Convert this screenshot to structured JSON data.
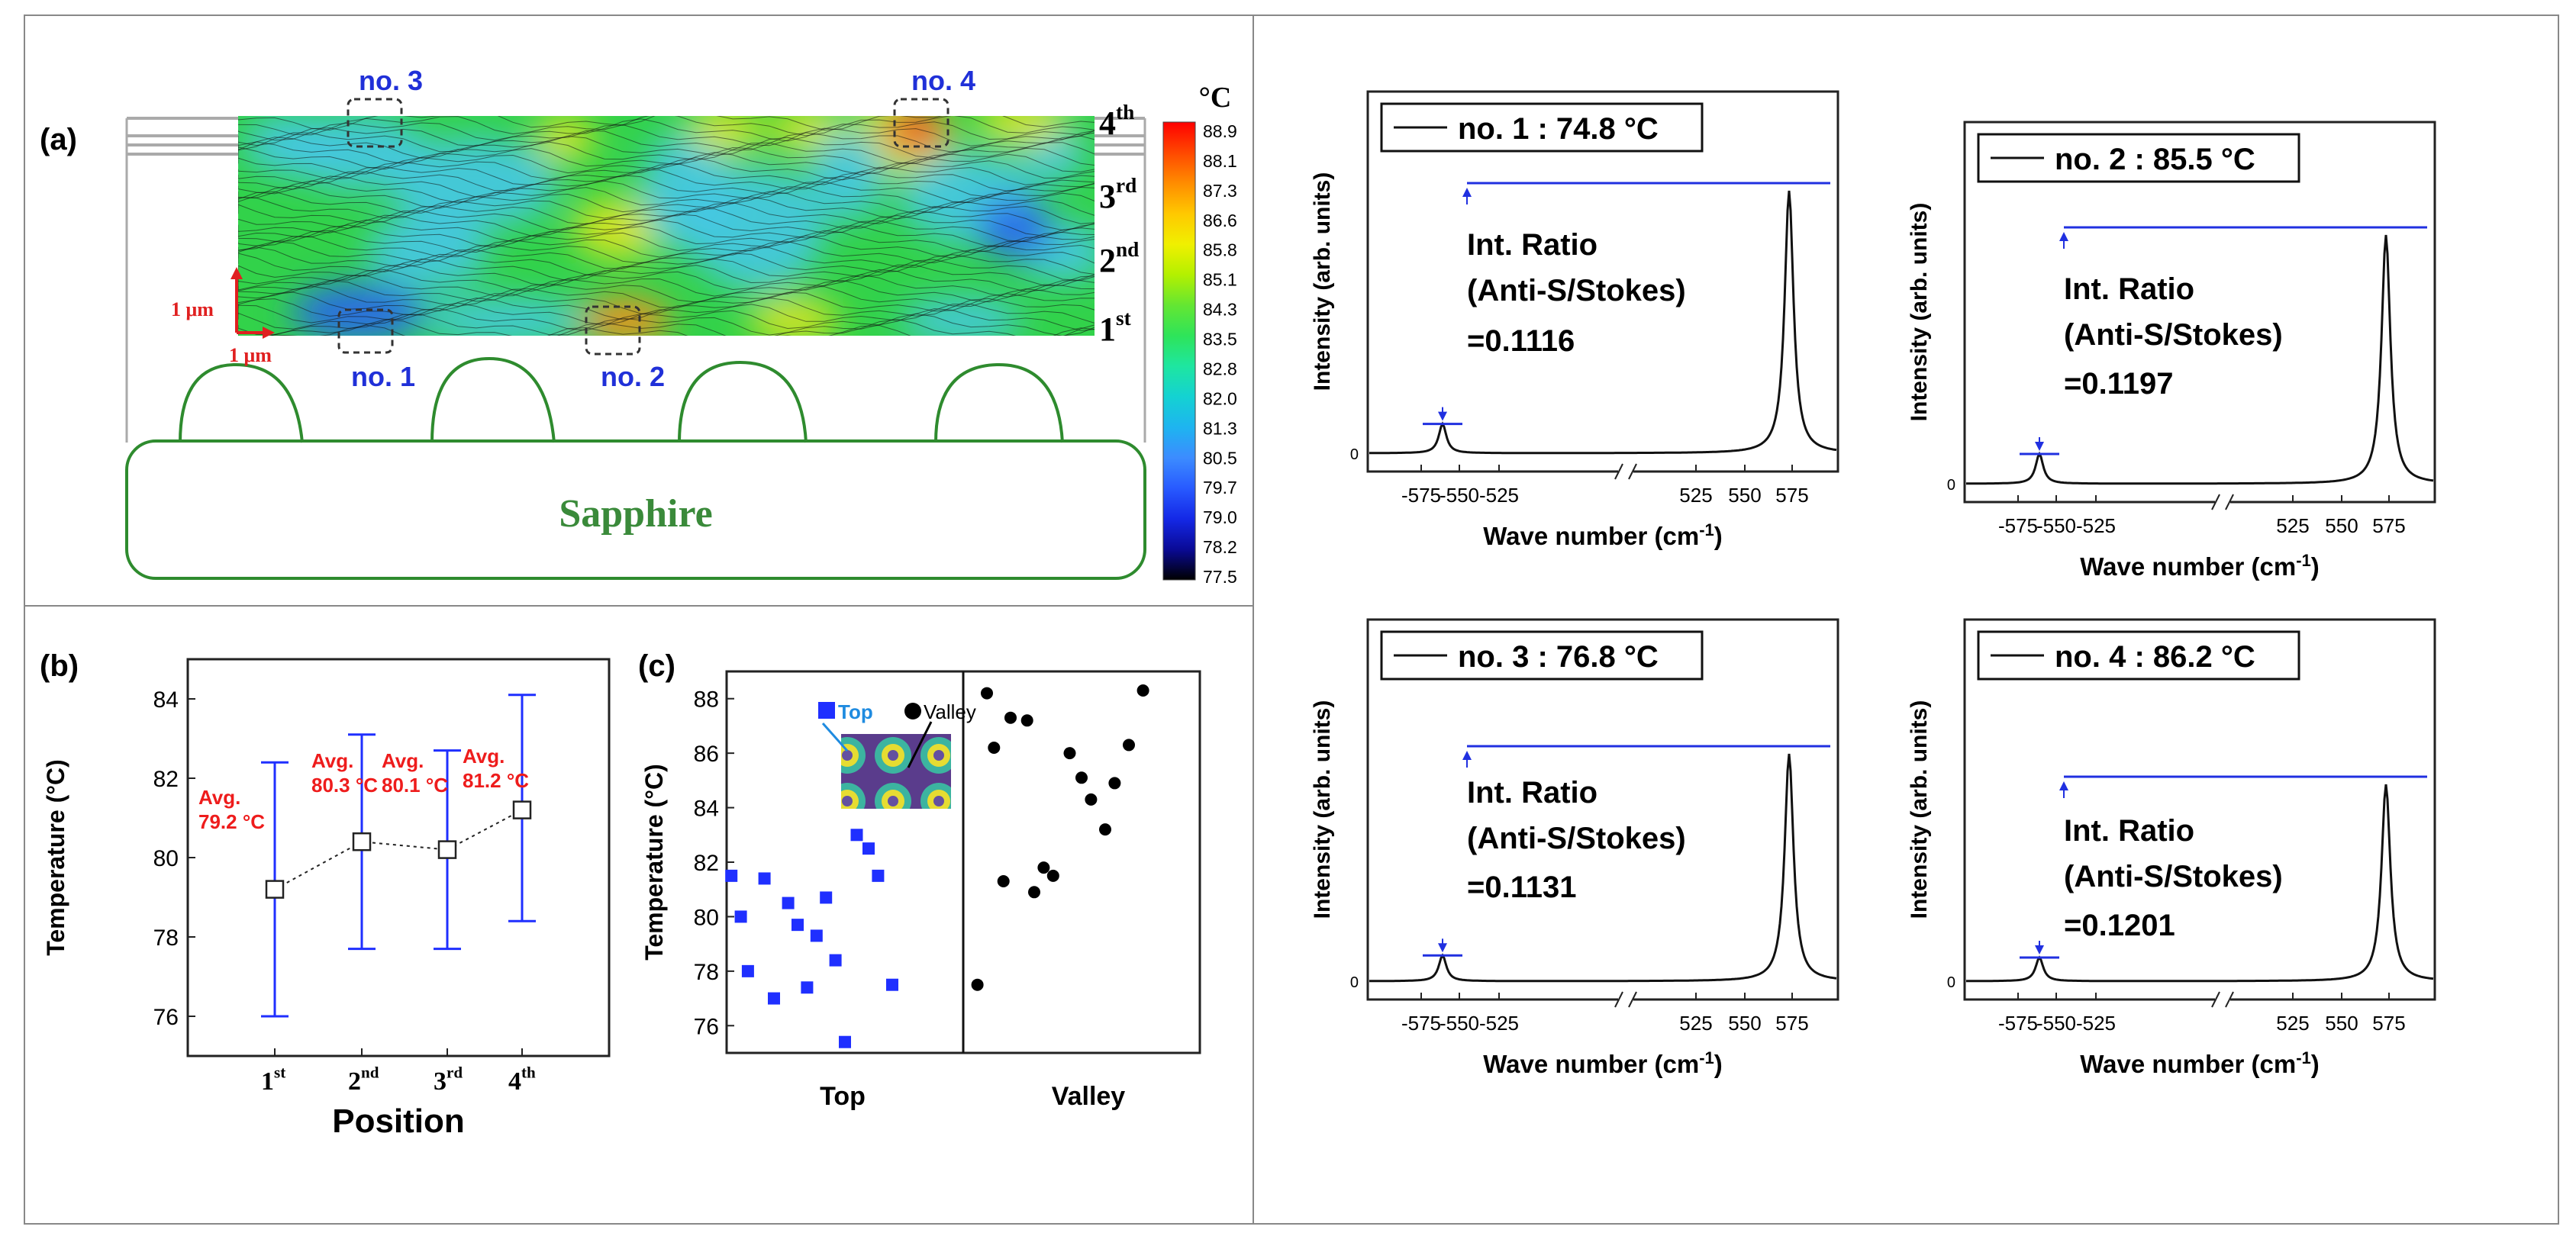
{
  "panel_labels": {
    "a": "(a)",
    "b": "(b)",
    "c": "(c)"
  },
  "panel_a": {
    "substrate_label": "Sapphire",
    "layer_labels": [
      {
        "num": "4",
        "sup": "th"
      },
      {
        "num": "3",
        "sup": "rd"
      },
      {
        "num": "2",
        "sup": "nd"
      },
      {
        "num": "1",
        "sup": "st"
      }
    ],
    "point_labels": [
      "no. 1",
      "no. 2",
      "no. 3",
      "no. 4"
    ],
    "scale_v": "1 μm",
    "scale_h": "1 μm",
    "colorbar": {
      "unit": "°C",
      "ticks": [
        "88.9",
        "88.1",
        "87.3",
        "86.6",
        "85.8",
        "85.1",
        "84.3",
        "83.5",
        "82.8",
        "82.0",
        "81.3",
        "80.5",
        "79.7",
        "79.0",
        "78.2",
        "77.5"
      ],
      "colors": [
        "#ff0000",
        "#ff4800",
        "#ff8c00",
        "#ffc800",
        "#f0f000",
        "#b4f000",
        "#64e632",
        "#2ee45a",
        "#1ee6a0",
        "#14d2d2",
        "#1eb4f0",
        "#3c8cff",
        "#285aff",
        "#1428e6",
        "#0a0a96",
        "#000000"
      ]
    },
    "map_colors": {
      "green": "#32d24a",
      "yellow": "#e6e61e",
      "cyan": "#46c8e6",
      "blue": "#2864f0",
      "orange": "#ff8c1e",
      "red": "#f03c28"
    }
  },
  "chart_data": [
    {
      "id": "b",
      "type": "scatter",
      "xlabel": "Position",
      "ylabel": "Temperature (°C)",
      "categories": [
        {
          "num": "1",
          "sup": "st"
        },
        {
          "num": "2",
          "sup": "nd"
        },
        {
          "num": "3",
          "sup": "rd"
        },
        {
          "num": "4",
          "sup": "th"
        }
      ],
      "values": [
        79.2,
        80.4,
        80.2,
        81.2
      ],
      "err_low": [
        76.0,
        77.7,
        77.7,
        78.4
      ],
      "err_high": [
        82.4,
        83.1,
        82.7,
        84.1
      ],
      "ylim": [
        75,
        85
      ],
      "yticks": [
        76,
        78,
        80,
        82,
        84
      ],
      "annotations": [
        {
          "line1": "Avg.",
          "line2": "79.2 °C"
        },
        {
          "line1": "Avg.",
          "line2": "80.3 °C"
        },
        {
          "line1": "Avg.",
          "line2": "80.1 °C"
        },
        {
          "line1": "Avg.",
          "line2": "81.2 °C"
        }
      ],
      "colors": {
        "error": "#1f2fff",
        "annotation": "#ee1c1c"
      }
    },
    {
      "id": "c",
      "type": "scatter",
      "ylabel": "Temperature (°C)",
      "categories": [
        "Top",
        "Valley"
      ],
      "ylim": [
        75,
        89
      ],
      "yticks": [
        76,
        78,
        80,
        82,
        84,
        86,
        88
      ],
      "series": [
        {
          "name": "Top",
          "color": "#1f2fff",
          "marker": "square",
          "points": [
            [
              0.02,
              81.5
            ],
            [
              0.06,
              80.0
            ],
            [
              0.09,
              78.0
            ],
            [
              0.16,
              81.4
            ],
            [
              0.2,
              77.0
            ],
            [
              0.26,
              80.5
            ],
            [
              0.3,
              79.7
            ],
            [
              0.34,
              77.4
            ],
            [
              0.38,
              79.3
            ],
            [
              0.42,
              80.7
            ],
            [
              0.46,
              78.4
            ],
            [
              0.5,
              75.4
            ],
            [
              0.55,
              83.0
            ],
            [
              0.6,
              82.5
            ],
            [
              0.64,
              81.5
            ],
            [
              0.7,
              77.5
            ]
          ]
        },
        {
          "name": "Valley",
          "color": "#000000",
          "marker": "circle",
          "points": [
            [
              1.06,
              77.5
            ],
            [
              1.1,
              88.2
            ],
            [
              1.13,
              86.2
            ],
            [
              1.17,
              81.3
            ],
            [
              1.2,
              87.3
            ],
            [
              1.27,
              87.2
            ],
            [
              1.3,
              80.9
            ],
            [
              1.34,
              81.8
            ],
            [
              1.38,
              81.5
            ],
            [
              1.45,
              86.0
            ],
            [
              1.5,
              85.1
            ],
            [
              1.54,
              84.3
            ],
            [
              1.6,
              83.2
            ],
            [
              1.64,
              84.9
            ],
            [
              1.7,
              86.3
            ],
            [
              1.76,
              88.3
            ]
          ]
        }
      ]
    },
    {
      "id": "no1",
      "type": "line",
      "legend": "no. 1 : 74.8 °C",
      "ratio_label": [
        "Int. Ratio",
        "(Anti-S/Stokes)",
        "=0.1116"
      ],
      "peak_ratio": 0.1116,
      "xlabel": "Wave number (cm",
      "xlabel_sup": "-1",
      "xlabel_end": ")",
      "ylabel": "Intensity (arb. units)",
      "xticks_left": [
        "-575",
        "-550",
        "-525"
      ],
      "xticks_right": [
        "525",
        "550",
        "575"
      ],
      "yticks": [
        "0"
      ]
    },
    {
      "id": "no2",
      "type": "line",
      "legend": "no. 2 : 85.5 °C",
      "ratio_label": [
        "Int. Ratio",
        "(Anti-S/Stokes)",
        "=0.1197"
      ],
      "peak_ratio": 0.1197,
      "xlabel": "Wave number (cm",
      "xlabel_sup": "-1",
      "xlabel_end": ")",
      "ylabel": "Intensity (arb. units)",
      "xticks_left": [
        "-575",
        "-550",
        "-525"
      ],
      "xticks_right": [
        "525",
        "550",
        "575"
      ],
      "yticks": [
        "0"
      ]
    },
    {
      "id": "no3",
      "type": "line",
      "legend": "no. 3 : 76.8 °C",
      "ratio_label": [
        "Int. Ratio",
        "(Anti-S/Stokes)",
        "=0.1131"
      ],
      "peak_ratio": 0.1131,
      "xlabel": "Wave number (cm",
      "xlabel_sup": "-1",
      "xlabel_end": ")",
      "ylabel": "Intensity (arb. units)",
      "xticks_left": [
        "-575",
        "-550",
        "-525"
      ],
      "xticks_right": [
        "525",
        "550",
        "575"
      ],
      "yticks": [
        "0"
      ]
    },
    {
      "id": "no4",
      "type": "line",
      "legend": "no. 4 : 86.2 °C",
      "ratio_label": [
        "Int. Ratio",
        "(Anti-S/Stokes)",
        "=0.1201"
      ],
      "peak_ratio": 0.1201,
      "xlabel": "Wave number (cm",
      "xlabel_sup": "-1",
      "xlabel_end": ")",
      "ylabel": "Intensity (arb. units)",
      "xticks_left": [
        "-575",
        "-550",
        "-525"
      ],
      "xticks_right": [
        "525",
        "550",
        "575"
      ],
      "yticks": [
        "0"
      ]
    }
  ]
}
